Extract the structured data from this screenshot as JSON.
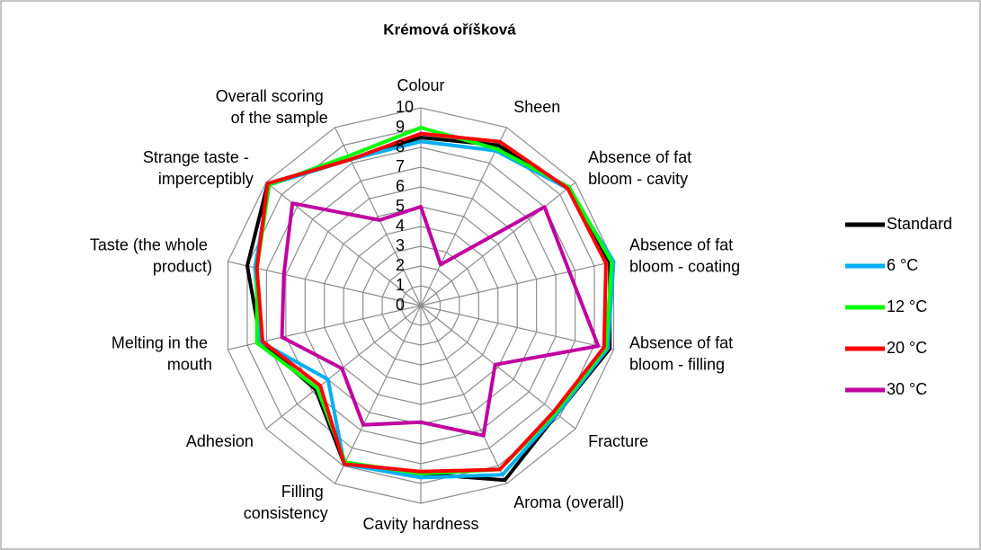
{
  "chart_data": {
    "type": "radar",
    "title": "Krémová oříšková",
    "categories": [
      "Colour",
      "Sheen",
      "Absence of fat bloom - cavity",
      "Absence of fat bloom - coating",
      "Absence of fat bloom - filling",
      "Fracture",
      "Aroma (overall)",
      "Cavity hardness",
      "Filling consistency",
      "Adhesion",
      "Melting in the mouth",
      "Taste (the whole product)",
      "Strange taste - imperceptibly",
      "Overall scoring of the sample"
    ],
    "series": [
      {
        "name": "Standard",
        "color": "#000000",
        "values": [
          8.5,
          9.0,
          9.5,
          9.8,
          9.8,
          8.8,
          9.8,
          8.5,
          8.9,
          6.8,
          8.3,
          9.0,
          9.9,
          8.2
        ]
      },
      {
        "name": "6 °C",
        "color": "#00b0f0",
        "values": [
          8.3,
          8.7,
          9.5,
          10.0,
          9.7,
          8.8,
          9.5,
          8.7,
          8.9,
          6.0,
          8.3,
          8.6,
          9.8,
          8.2
        ]
      },
      {
        "name": "12 °C",
        "color": "#00ff00",
        "values": [
          9.0,
          8.8,
          9.6,
          9.9,
          9.6,
          8.7,
          9.2,
          8.5,
          8.8,
          6.7,
          8.5,
          8.5,
          9.8,
          8.4
        ]
      },
      {
        "name": "20 °C",
        "color": "#ff0000",
        "values": [
          8.7,
          9.2,
          9.5,
          9.6,
          9.5,
          8.6,
          9.2,
          8.4,
          8.9,
          6.5,
          8.2,
          8.5,
          9.9,
          8.2
        ]
      },
      {
        "name": "30 °C",
        "color": "#c000a0",
        "values": [
          5.0,
          2.3,
          8.0,
          7.7,
          9.2,
          4.8,
          7.3,
          5.9,
          6.7,
          5.1,
          7.2,
          7.1,
          8.3,
          4.8
        ]
      }
    ],
    "ylim": [
      0,
      10
    ],
    "yticks": [
      0,
      1,
      2,
      3,
      4,
      5,
      6,
      7,
      8,
      9,
      10
    ],
    "grid": true,
    "legend": "right"
  }
}
